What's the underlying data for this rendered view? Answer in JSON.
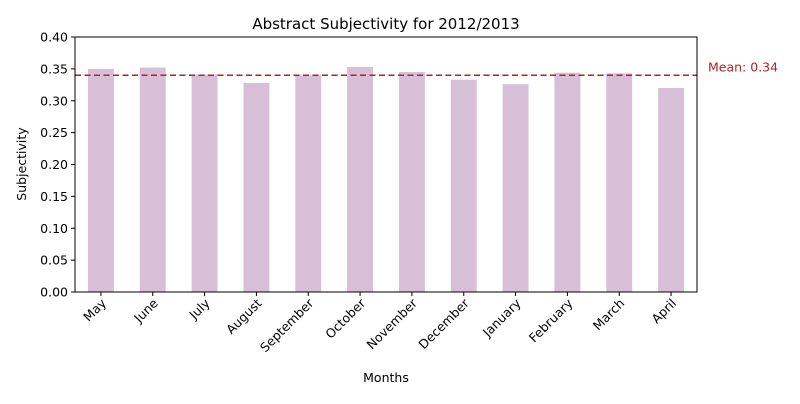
{
  "chart_data": {
    "type": "bar",
    "title": "Abstract Subjectivity for 2012/2013",
    "xlabel": "Months",
    "ylabel": "Subjectivity",
    "categories": [
      "May",
      "June",
      "July",
      "August",
      "September",
      "October",
      "November",
      "December",
      "January",
      "February",
      "March",
      "April"
    ],
    "values": [
      0.35,
      0.352,
      0.341,
      0.328,
      0.34,
      0.353,
      0.345,
      0.333,
      0.326,
      0.344,
      0.343,
      0.32
    ],
    "ylim": [
      0,
      0.4
    ],
    "yticks": [
      "0.00",
      "0.05",
      "0.10",
      "0.15",
      "0.20",
      "0.25",
      "0.30",
      "0.35",
      "0.40"
    ],
    "grid": false,
    "bar_color": "#d8bfd8",
    "mean": {
      "value": 0.34,
      "label": "Mean: 0.34",
      "color": "#b22222",
      "style": "dashed"
    }
  }
}
